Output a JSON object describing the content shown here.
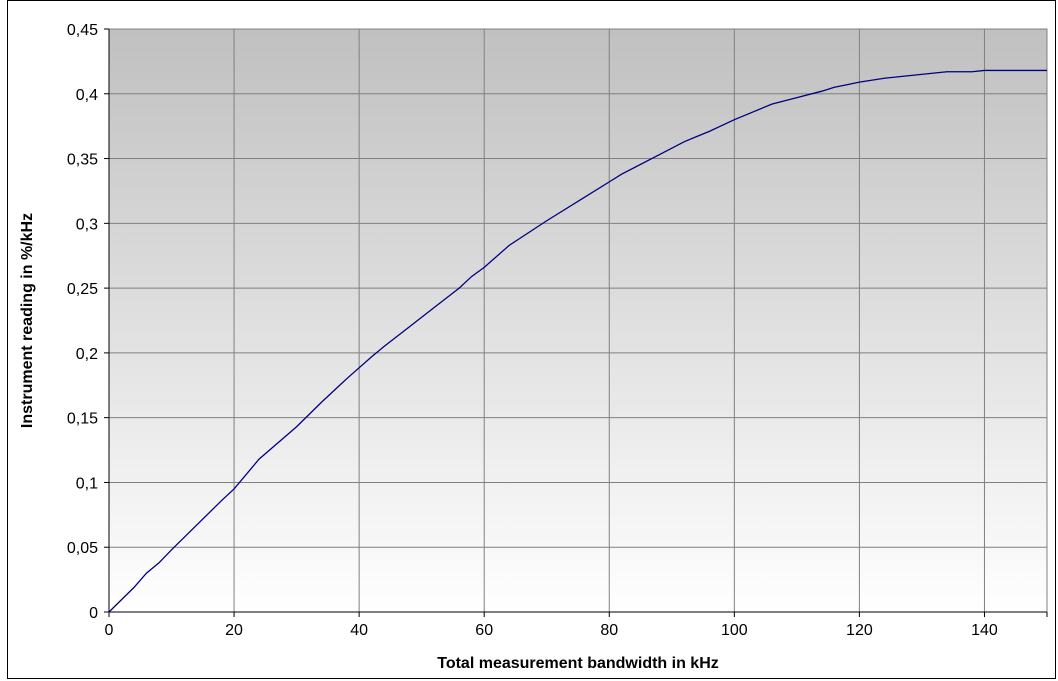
{
  "chart_data": {
    "type": "line",
    "title": "",
    "xlabel": "Total measurement bandwidth in kHz",
    "ylabel": "Instrument reading in %/kHz",
    "xlim": [
      0,
      150
    ],
    "ylim": [
      0,
      0.45
    ],
    "x_ticks": [
      0,
      20,
      40,
      60,
      80,
      100,
      120,
      140
    ],
    "x_tick_labels": [
      "0",
      "20",
      "40",
      "60",
      "80",
      "100",
      "120",
      "140"
    ],
    "y_ticks": [
      0,
      0.05,
      0.1,
      0.15,
      0.2,
      0.25,
      0.3,
      0.35,
      0.4,
      0.45
    ],
    "y_tick_labels": [
      "0",
      "0,05",
      "0,1",
      "0,15",
      "0,2",
      "0,25",
      "0,3",
      "0,35",
      "0,4",
      "0,45"
    ],
    "grid": true,
    "legend": "none",
    "colors": {
      "line": "#000080",
      "plot_bg_top": "#c0c0c0",
      "plot_bg_bottom": "#ffffff",
      "grid": "#808080"
    },
    "series": [
      {
        "x": [
          0,
          4,
          6,
          8,
          10,
          14,
          18,
          20,
          24,
          30,
          34,
          38,
          42,
          44,
          48,
          52,
          56,
          58,
          60,
          64,
          70,
          76,
          80,
          82,
          88,
          92,
          94,
          96,
          100,
          106,
          110,
          114,
          116,
          118,
          120,
          124,
          128,
          134,
          136,
          138,
          140,
          144,
          150
        ],
        "y": [
          0,
          0.019,
          0.03,
          0.038,
          0.048,
          0.067,
          0.086,
          0.095,
          0.118,
          0.143,
          0.162,
          0.18,
          0.197,
          0.205,
          0.22,
          0.235,
          0.25,
          0.259,
          0.266,
          0.283,
          0.302,
          0.32,
          0.332,
          0.338,
          0.353,
          0.363,
          0.367,
          0.371,
          0.38,
          0.392,
          0.397,
          0.402,
          0.405,
          0.407,
          0.409,
          0.412,
          0.414,
          0.417,
          0.417,
          0.417,
          0.418,
          0.418,
          0.418
        ]
      }
    ]
  }
}
